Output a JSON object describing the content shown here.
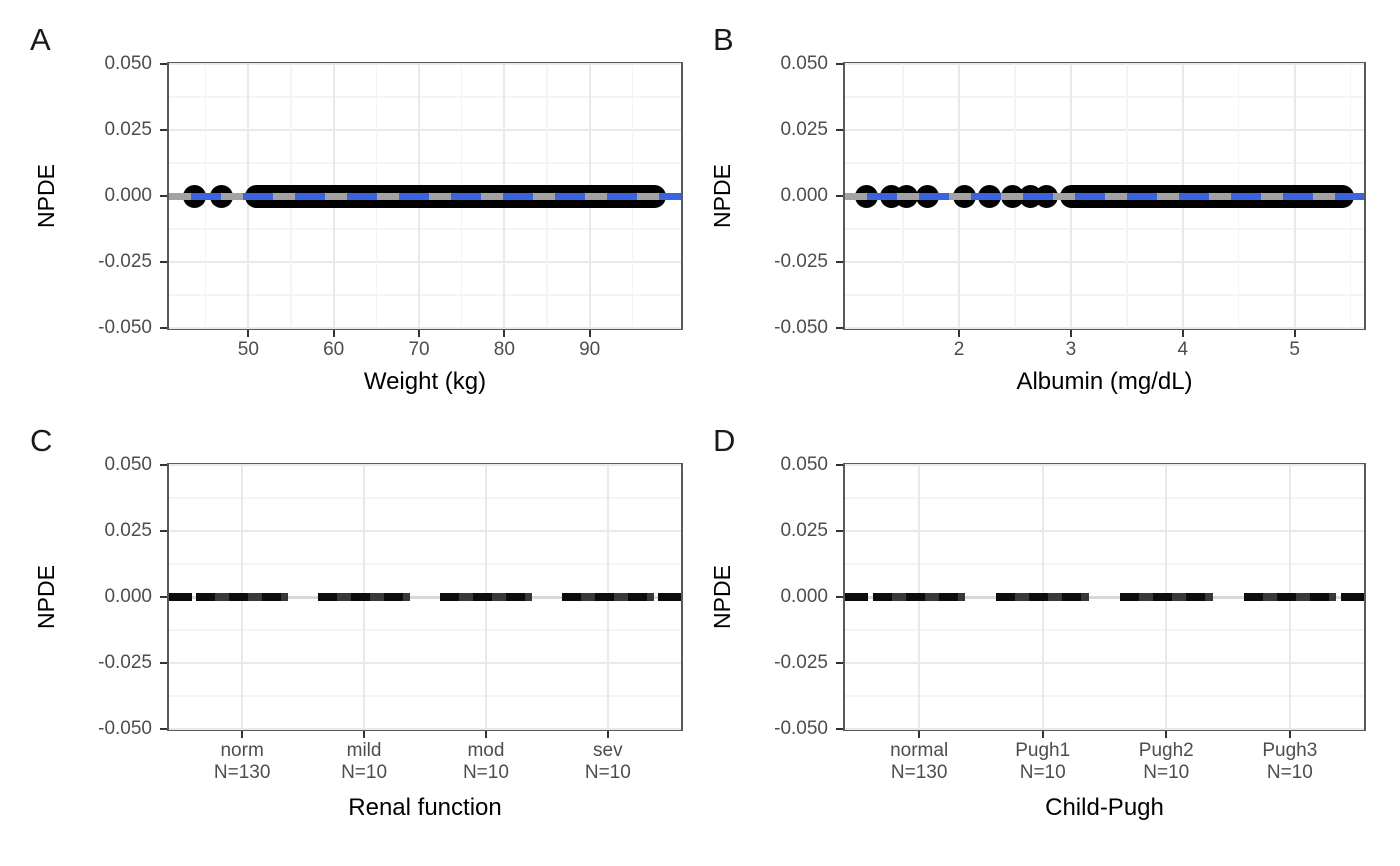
{
  "figure": {
    "description": "Four-panel NPDE covariate diagnostic plot"
  },
  "colors": {
    "point_black": "#000000",
    "trend_blue": "#3a63e0",
    "ref_gray": "#a2a2a2",
    "ref_faint_gray": "#d8d8d8",
    "dash_black": "#0c0c0c",
    "dash_dark_gray": "#383838",
    "panel_border": "#595959",
    "grid_major": "#e9e9e9",
    "grid_minor": "#f4f4f4",
    "tick_mark": "#333333",
    "tick_label": "#4d4d4d",
    "axis_title": "#000000"
  },
  "panels": [
    {
      "id": "A",
      "letter": "A",
      "y_title": "NPDE",
      "y_ticks": [
        "0.050",
        "0.025",
        "0.000",
        "-0.025",
        "-0.050"
      ],
      "x_axis": {
        "type": "continuous",
        "title": "Weight (kg)",
        "range": [
          40.7,
          100.7
        ],
        "ticks": [
          {
            "v": 50,
            "label": "50"
          },
          {
            "v": 60,
            "label": "60"
          },
          {
            "v": 70,
            "label": "70"
          },
          {
            "v": 80,
            "label": "80"
          },
          {
            "v": 90,
            "label": "90"
          }
        ],
        "minor": [
          45,
          55,
          65,
          75,
          85,
          95
        ]
      },
      "data": {
        "circles": [
          43.7,
          46.9
        ],
        "bands": [
          [
            49.6,
            98.9
          ]
        ],
        "ref": "gray",
        "trend": "blue-dashed"
      }
    },
    {
      "id": "B",
      "letter": "B",
      "y_title": "NPDE",
      "y_ticks": [
        "0.050",
        "0.025",
        "0.000",
        "-0.025",
        "-0.050"
      ],
      "x_axis": {
        "type": "continuous",
        "title": "Albumin (mg/dL)",
        "range": [
          0.98,
          5.62
        ],
        "ticks": [
          {
            "v": 2,
            "label": "2"
          },
          {
            "v": 3,
            "label": "3"
          },
          {
            "v": 4,
            "label": "4"
          },
          {
            "v": 5,
            "label": "5"
          }
        ],
        "minor": [
          1.5,
          2.5,
          3.5,
          4.5,
          5.5
        ]
      },
      "data": {
        "circles": [
          1.17,
          1.4,
          1.53,
          1.72,
          2.05,
          2.27,
          2.48,
          2.64,
          2.78
        ],
        "bands": [
          [
            2.9,
            5.53
          ]
        ],
        "ref": "gray",
        "trend": "blue-dashed"
      }
    },
    {
      "id": "C",
      "letter": "C",
      "y_title": "NPDE",
      "y_ticks": [
        "0.050",
        "0.025",
        "0.000",
        "-0.025",
        "-0.050"
      ],
      "x_axis": {
        "type": "categorical",
        "title": "Renal function",
        "range": [
          0.4,
          4.6
        ],
        "categories": [
          {
            "label": "norm",
            "n": "N=130"
          },
          {
            "label": "mild",
            "n": "N=10"
          },
          {
            "label": "mod",
            "n": "N=10"
          },
          {
            "label": "sev",
            "n": "N=10"
          }
        ]
      },
      "data": {
        "segments": [
          [
            0.625,
            1.375
          ],
          [
            1.625,
            2.375
          ],
          [
            2.625,
            3.375
          ],
          [
            3.625,
            4.375
          ]
        ],
        "stubs": [
          [
            0.4,
            0.59
          ],
          [
            4.41,
            4.6
          ]
        ],
        "ref": "faint"
      }
    },
    {
      "id": "D",
      "letter": "D",
      "y_title": "NPDE",
      "y_ticks": [
        "0.050",
        "0.025",
        "0.000",
        "-0.025",
        "-0.050"
      ],
      "x_axis": {
        "type": "categorical",
        "title": "Child-Pugh",
        "range": [
          0.4,
          4.6
        ],
        "categories": [
          {
            "label": "normal",
            "n": "N=130"
          },
          {
            "label": "Pugh1",
            "n": "N=10"
          },
          {
            "label": "Pugh2",
            "n": "N=10"
          },
          {
            "label": "Pugh3",
            "n": "N=10"
          }
        ]
      },
      "data": {
        "segments": [
          [
            0.625,
            1.375
          ],
          [
            1.625,
            2.375
          ],
          [
            2.625,
            3.375
          ],
          [
            3.625,
            4.375
          ]
        ],
        "stubs": [
          [
            0.4,
            0.59
          ],
          [
            4.41,
            4.6
          ]
        ],
        "ref": "faint"
      }
    }
  ],
  "chart_data": [
    {
      "type": "scatter",
      "panel": "A",
      "xlabel": "Weight (kg)",
      "ylabel": "NPDE",
      "xlim": [
        40.7,
        100.7
      ],
      "ylim": [
        -0.05,
        0.05
      ],
      "x_ticks": [
        50,
        60,
        70,
        80,
        90
      ],
      "y_ticks": [
        -0.05,
        -0.025,
        0.0,
        0.025,
        0.05
      ],
      "grid": true,
      "legend": false,
      "series": [
        {
          "name": "npde-points",
          "style": "black filled points",
          "y_value": 0.0,
          "x_coverage": [
            [
              43.5,
              47.5
            ],
            [
              49.6,
              98.9
            ]
          ],
          "note": "dense band of points, all NPDE = 0.000"
        },
        {
          "name": "reference-line",
          "style": "solid gray horizontal",
          "y_value": 0.0
        },
        {
          "name": "trend-line",
          "style": "dashed blue horizontal",
          "y_value": 0.0
        }
      ]
    },
    {
      "type": "scatter",
      "panel": "B",
      "xlabel": "Albumin (mg/dL)",
      "ylabel": "NPDE",
      "xlim": [
        0.98,
        5.62
      ],
      "ylim": [
        -0.05,
        0.05
      ],
      "x_ticks": [
        2,
        3,
        4,
        5
      ],
      "y_ticks": [
        -0.05,
        -0.025,
        0.0,
        0.025,
        0.05
      ],
      "grid": true,
      "legend": false,
      "series": [
        {
          "name": "npde-points",
          "style": "black filled points",
          "y_value": 0.0,
          "x_coverage": [
            [
              1.1,
              1.85
            ],
            [
              2.0,
              2.85
            ],
            [
              2.9,
              5.53
            ]
          ],
          "note": "all NPDE = 0.000"
        },
        {
          "name": "reference-line",
          "style": "solid gray horizontal",
          "y_value": 0.0
        },
        {
          "name": "trend-line",
          "style": "dashed blue horizontal",
          "y_value": 0.0
        }
      ]
    },
    {
      "type": "box",
      "panel": "C",
      "xlabel": "Renal function",
      "ylabel": "NPDE",
      "ylim": [
        -0.05,
        0.05
      ],
      "y_ticks": [
        -0.05,
        -0.025,
        0.0,
        0.025,
        0.05
      ],
      "categories": [
        "norm N=130",
        "mild N=10",
        "mod N=10",
        "sev N=10"
      ],
      "values": [
        0.0,
        0.0,
        0.0,
        0.0
      ],
      "note": "boxplots fully collapsed to dashed black horizontal lines at NPDE = 0.000"
    },
    {
      "type": "box",
      "panel": "D",
      "xlabel": "Child-Pugh",
      "ylabel": "NPDE",
      "ylim": [
        -0.05,
        0.05
      ],
      "y_ticks": [
        -0.05,
        -0.025,
        0.0,
        0.025,
        0.05
      ],
      "categories": [
        "normal N=130",
        "Pugh1 N=10",
        "Pugh2 N=10",
        "Pugh3 N=10"
      ],
      "values": [
        0.0,
        0.0,
        0.0,
        0.0
      ],
      "note": "boxplots fully collapsed to dashed black horizontal lines at NPDE = 0.000"
    }
  ]
}
